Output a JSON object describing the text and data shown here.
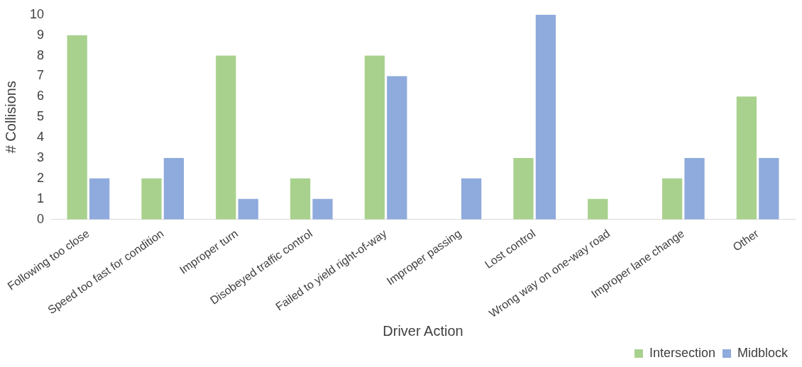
{
  "chart_data": {
    "type": "bar",
    "xlabel": "Driver Action",
    "ylabel": "# Collisions",
    "categories": [
      "Following too close",
      "Speed too fast for condition",
      "Improper turn",
      "Disobeyed traffic control",
      "Failed to yield right-of-way",
      "Improper passing",
      "Lost control",
      "Wrong way on one-way road",
      "Improper lane change",
      "Other"
    ],
    "series": [
      {
        "name": "Intersection",
        "color": "#a9d18e",
        "values": [
          9,
          2,
          8,
          2,
          8,
          0,
          3,
          1,
          2,
          6
        ]
      },
      {
        "name": "Midblock",
        "color": "#8faadc",
        "values": [
          2,
          3,
          1,
          1,
          7,
          2,
          10,
          0,
          3,
          3
        ]
      }
    ],
    "ylim": [
      0,
      10
    ],
    "yticks": [
      0,
      1,
      2,
      3,
      4,
      5,
      6,
      7,
      8,
      9,
      10
    ],
    "grid": false,
    "legend": "bottom right"
  }
}
